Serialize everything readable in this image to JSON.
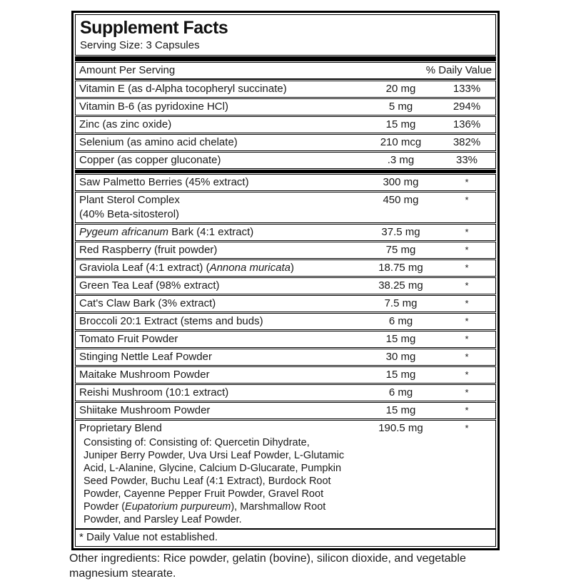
{
  "colors": {
    "border": "#000000",
    "text": "#1a1a1a",
    "background": "#ffffff"
  },
  "label": {
    "title": "Supplement Facts",
    "serving_size": "Serving Size: 3 Capsules",
    "columns": {
      "amount": "Amount Per Serving",
      "daily_value": "% Daily Value"
    },
    "rows": [
      {
        "name": [
          {
            "t": "Vitamin E (as d-Alpha tocopheryl succinate)"
          }
        ],
        "amount": "20 mg",
        "dv": "133%"
      },
      {
        "name": [
          {
            "t": "Vitamin B-6 (as pyridoxine HCl)"
          }
        ],
        "amount": "5 mg",
        "dv": "294%"
      },
      {
        "name": [
          {
            "t": "Zinc (as zinc oxide)"
          }
        ],
        "amount": "15 mg",
        "dv": "136%"
      },
      {
        "name": [
          {
            "t": "Selenium (as amino acid chelate)"
          }
        ],
        "amount": "210 mcg",
        "dv": "382%"
      },
      {
        "name": [
          {
            "t": "Copper (as copper gluconate)"
          }
        ],
        "amount": ".3 mg",
        "dv": "33%"
      },
      {
        "bar": true
      },
      {
        "name": [
          {
            "t": "Saw Palmetto Berries (45% extract)"
          }
        ],
        "amount": "300 mg",
        "dv": "*"
      },
      {
        "name": [
          {
            "t": "Plant Sterol Complex"
          },
          {
            "br": true
          },
          {
            "t": " (40% Beta-sitosterol)"
          }
        ],
        "amount": "450 mg",
        "dv": "*"
      },
      {
        "name": [
          {
            "t": "Pygeum africanum",
            "i": true
          },
          {
            "t": " Bark (4:1 extract)"
          }
        ],
        "amount": "37.5 mg",
        "dv": "*"
      },
      {
        "name": [
          {
            "t": "Red Raspberry (fruit powder)"
          }
        ],
        "amount": "75 mg",
        "dv": "*"
      },
      {
        "name": [
          {
            "t": "Graviola Leaf (4:1 extract) ("
          },
          {
            "t": "Annona muricata",
            "i": true
          },
          {
            "t": ")"
          }
        ],
        "amount": "18.75 mg",
        "dv": "*"
      },
      {
        "name": [
          {
            "t": "Green Tea Leaf (98% extract)"
          }
        ],
        "amount": "38.25 mg",
        "dv": "*"
      },
      {
        "name": [
          {
            "t": "Cat's Claw Bark (3% extract)"
          }
        ],
        "amount": "7.5 mg",
        "dv": "*"
      },
      {
        "name": [
          {
            "t": "Broccoli 20:1 Extract (stems and buds)"
          }
        ],
        "amount": "6 mg",
        "dv": "*"
      },
      {
        "name": [
          {
            "t": "Tomato Fruit Powder"
          }
        ],
        "amount": "15 mg",
        "dv": "*"
      },
      {
        "name": [
          {
            "t": "Stinging Nettle Leaf Powder"
          }
        ],
        "amount": "30 mg",
        "dv": "*"
      },
      {
        "name": [
          {
            "t": "Maitake Mushroom Powder"
          }
        ],
        "amount": "15 mg",
        "dv": "*"
      },
      {
        "name": [
          {
            "t": "Reishi Mushroom (10:1 extract)"
          }
        ],
        "amount": "6 mg",
        "dv": "*"
      },
      {
        "name": [
          {
            "t": "Shiitake Mushroom Powder"
          }
        ],
        "amount": "15 mg",
        "dv": "*"
      },
      {
        "name": [
          {
            "t": "Proprietary Blend"
          }
        ],
        "amount": "190.5 mg",
        "dv": "*",
        "details": [
          [
            {
              "t": "Consisting of: Consisting of: Quercetin Dihydrate,"
            }
          ],
          [
            {
              "t": "Juniper Berry Powder, Uva Ursi Leaf Powder, L-Glutamic"
            }
          ],
          [
            {
              "t": "Acid, L-Alanine, Glycine, Calcium D-Glucarate, Pumpkin"
            }
          ],
          [
            {
              "t": "Seed Powder, Buchu Leaf (4:1 Extract), Burdock Root"
            }
          ],
          [
            {
              "t": "Powder, Cayenne Pepper Fruit Powder, Gravel Root"
            }
          ],
          [
            {
              "t": "Powder ("
            },
            {
              "t": "Eupatorium purpureum",
              "i": true
            },
            {
              "t": "), Marshmallow Root"
            }
          ],
          [
            {
              "t": "Powder, and Parsley Leaf Powder."
            }
          ]
        ]
      }
    ],
    "footnote": "* Daily Value not established."
  },
  "other_ingredients": "Other ingredients: Rice powder, gelatin (bovine), silicon dioxide, and vegetable magnesium stearate."
}
